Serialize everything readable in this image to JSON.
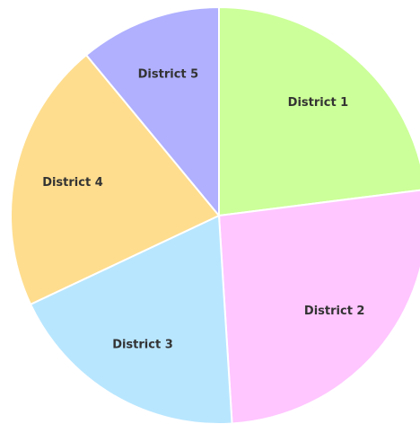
{
  "chart_data": {
    "type": "pie",
    "categories": [
      "District 1",
      "District 2",
      "District 3",
      "District 4",
      "District 5"
    ],
    "values": [
      23,
      26,
      19,
      21,
      11
    ],
    "colors": [
      "#ccff99",
      "#ffc6ff",
      "#b8e6ff",
      "#fedd8e",
      "#b0b0ff"
    ]
  }
}
